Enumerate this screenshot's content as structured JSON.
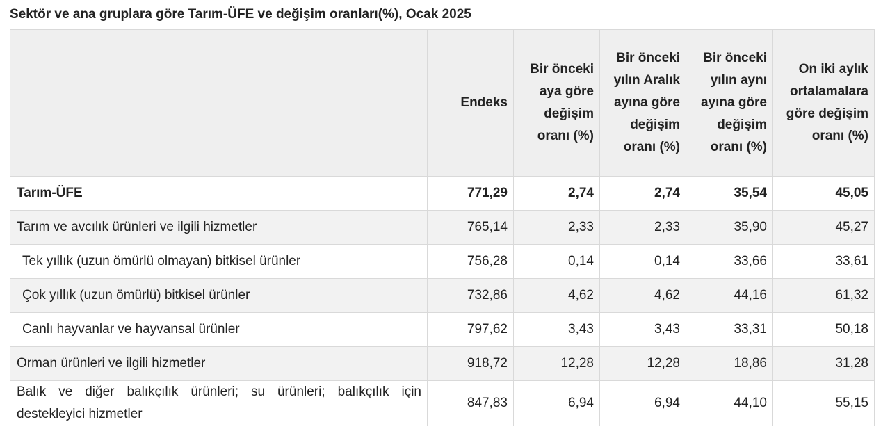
{
  "title": "Sektör ve ana gruplara göre Tarım-ÜFE ve değişim oranları(%), Ocak 2025",
  "columns": [
    "",
    "Endeks",
    "Bir önceki aya göre değişim oranı (%)",
    "Bir önceki yılın Aralık ayına göre değişim oranı (%)",
    "Bir önceki yılın aynı ayına göre değişim oranı (%)",
    "On iki aylık ortalamalara göre değişim oranı (%)"
  ],
  "rows": [
    {
      "label": "Tarım-ÜFE",
      "endeks": "771,29",
      "aylik": "2,74",
      "aralik": "2,74",
      "yillik": "35,54",
      "ortalama": "45,05"
    },
    {
      "label": "Tarım ve avcılık ürünleri ve ilgili hizmetler",
      "endeks": "765,14",
      "aylik": "2,33",
      "aralik": "2,33",
      "yillik": "35,90",
      "ortalama": "45,27"
    },
    {
      "label": "Tek yıllık (uzun ömürlü olmayan) bitkisel ürünler",
      "endeks": "756,28",
      "aylik": "0,14",
      "aralik": "0,14",
      "yillik": "33,66",
      "ortalama": "33,61"
    },
    {
      "label": "Çok yıllık (uzun ömürlü) bitkisel ürünler",
      "endeks": "732,86",
      "aylik": "4,62",
      "aralik": "4,62",
      "yillik": "44,16",
      "ortalama": "61,32"
    },
    {
      "label": "Canlı hayvanlar ve hayvansal ürünler",
      "endeks": "797,62",
      "aylik": "3,43",
      "aralik": "3,43",
      "yillik": "33,31",
      "ortalama": "50,18"
    },
    {
      "label": "Orman ürünleri ve ilgili hizmetler",
      "endeks": "918,72",
      "aylik": "12,28",
      "aralik": "12,28",
      "yillik": "18,86",
      "ortalama": "31,28"
    },
    {
      "label": "Balık ve diğer balıkçılık ürünleri; su ürünleri; balıkçılık için destekleyici hizmetler",
      "endeks": "847,83",
      "aylik": "6,94",
      "aralik": "6,94",
      "yillik": "44,10",
      "ortalama": "55,15"
    }
  ]
}
